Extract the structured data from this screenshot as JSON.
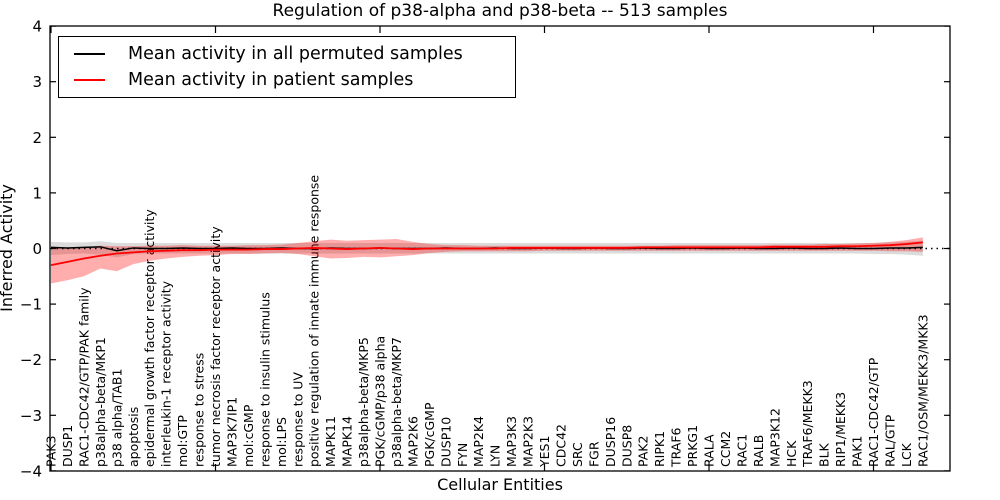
{
  "chart_data": {
    "type": "line",
    "title": "Regulation of p38-alpha and p38-beta -- 513 samples",
    "xlabel": "Cellular Entities",
    "ylabel": "Inferred Activity",
    "ylim": [
      -4,
      4
    ],
    "grid": false,
    "legend_position": "upper left",
    "yticks": [
      {
        "value": 4,
        "label": "4"
      },
      {
        "value": 3,
        "label": "3"
      },
      {
        "value": 2,
        "label": "2"
      },
      {
        "value": 1,
        "label": "1"
      },
      {
        "value": 0,
        "label": "0"
      },
      {
        "value": -1,
        "label": "−1"
      },
      {
        "value": -2,
        "label": "−2"
      },
      {
        "value": -3,
        "label": "−3"
      },
      {
        "value": -4,
        "label": "−4"
      }
    ],
    "xtick_indices": [
      0,
      10,
      20,
      30,
      40,
      50
    ],
    "zero_line": {
      "value": 0,
      "color": "#000000",
      "style": "dotted"
    },
    "categories": [
      "PAK3",
      "DUSP1",
      "RAC1-CDC42/GTP/PAK family",
      "p38alpha-beta/MKP1",
      "p38 alpha/TAB1",
      "apoptosis",
      "epidermal growth factor receptor activity",
      "interleukin-1 receptor activity",
      "mol:GTP",
      "response to stress",
      "tumor necrosis factor receptor activity",
      "MAP3K7IP1",
      "mol:cGMP",
      "response to insulin stimulus",
      "mol:LPS",
      "response to UV",
      "positive regulation of innate immune response",
      "MAPK11",
      "MAPK14",
      "p38alpha-beta/MKP5",
      "PGK/cGMP/p38 alpha",
      "p38alpha-beta/MKP7",
      "MAP2K6",
      "PGK/cGMP",
      "DUSP10",
      "FYN",
      "MAP2K4",
      "LYN",
      "MAP3K3",
      "MAP2K3",
      "YES1",
      "CDC42",
      "SRC",
      "FGR",
      "DUSP16",
      "DUSP8",
      "PAK2",
      "RIPK1",
      "TRAF6",
      "PRKG1",
      "RALA",
      "CCM2",
      "RAC1",
      "RALB",
      "MAP3K12",
      "HCK",
      "TRAF6/MEKK3",
      "BLK",
      "RIP1/MEKK3",
      "PAK1",
      "RAC1-CDC42/GTP",
      "RAL/GTP",
      "LCK",
      "RAC1/OSM/MEKK3/MKK3"
    ],
    "series": [
      {
        "name": "Mean activity in all permuted samples",
        "color": "#000000",
        "line_style": "solid",
        "line_width": 1.5,
        "band_color": "rgba(0,0,0,0.14)",
        "values": [
          0.02,
          0.01,
          0.02,
          0.03,
          -0.04,
          0.01,
          0.0,
          0.0,
          0.01,
          0.0,
          0.0,
          0.01,
          0.0,
          0.0,
          0.01,
          0.0,
          0.0,
          0.01,
          0.0,
          0.0,
          0.01,
          0.0,
          0.0,
          0.0,
          0.01,
          0.0,
          0.0,
          0.01,
          0.0,
          0.0,
          0.01,
          0.0,
          0.0,
          0.01,
          0.0,
          0.0,
          0.01,
          0.0,
          0.0,
          0.01,
          0.0,
          0.0,
          0.01,
          0.0,
          0.0,
          0.01,
          0.0,
          0.0,
          0.01,
          0.0,
          0.0,
          0.01,
          0.01,
          0.02
        ],
        "band_lo": [
          -0.12,
          -0.1,
          -0.09,
          -0.11,
          -0.16,
          -0.1,
          -0.09,
          -0.09,
          -0.09,
          -0.09,
          -0.09,
          -0.09,
          -0.09,
          -0.09,
          -0.09,
          -0.09,
          -0.09,
          -0.09,
          -0.09,
          -0.09,
          -0.09,
          -0.09,
          -0.09,
          -0.09,
          -0.09,
          -0.09,
          -0.09,
          -0.09,
          -0.09,
          -0.09,
          -0.09,
          -0.09,
          -0.09,
          -0.09,
          -0.09,
          -0.09,
          -0.09,
          -0.09,
          -0.09,
          -0.09,
          -0.09,
          -0.09,
          -0.09,
          -0.09,
          -0.09,
          -0.09,
          -0.09,
          -0.09,
          -0.09,
          -0.09,
          -0.1,
          -0.1,
          -0.11,
          -0.13
        ],
        "band_hi": [
          0.12,
          0.11,
          0.11,
          0.13,
          0.1,
          0.1,
          0.1,
          0.1,
          0.1,
          0.1,
          0.1,
          0.1,
          0.1,
          0.1,
          0.1,
          0.1,
          0.1,
          0.1,
          0.1,
          0.1,
          0.1,
          0.1,
          0.1,
          0.1,
          0.1,
          0.1,
          0.1,
          0.1,
          0.1,
          0.1,
          0.1,
          0.1,
          0.1,
          0.1,
          0.1,
          0.1,
          0.1,
          0.1,
          0.1,
          0.1,
          0.1,
          0.1,
          0.1,
          0.1,
          0.1,
          0.1,
          0.1,
          0.1,
          0.1,
          0.1,
          0.1,
          0.11,
          0.12,
          0.14
        ]
      },
      {
        "name": "Mean activity in patient samples",
        "color": "#ff0000",
        "line_style": "solid",
        "line_width": 1.8,
        "band_color": "rgba(255,0,0,0.32)",
        "values": [
          -0.3,
          -0.24,
          -0.18,
          -0.13,
          -0.09,
          -0.07,
          -0.05,
          -0.04,
          -0.03,
          -0.03,
          -0.02,
          -0.02,
          -0.02,
          -0.01,
          -0.01,
          0.0,
          0.01,
          0.0,
          -0.01,
          0.0,
          0.01,
          0.0,
          -0.01,
          0.0,
          0.0,
          0.0,
          0.0,
          0.0,
          0.01,
          0.01,
          0.01,
          0.01,
          0.01,
          0.01,
          0.01,
          0.01,
          0.02,
          0.02,
          0.02,
          0.02,
          0.02,
          0.02,
          0.02,
          0.02,
          0.03,
          0.03,
          0.03,
          0.03,
          0.04,
          0.04,
          0.05,
          0.06,
          0.08,
          0.11
        ],
        "band_lo": [
          -0.63,
          -0.57,
          -0.5,
          -0.36,
          -0.41,
          -0.28,
          -0.22,
          -0.18,
          -0.15,
          -0.13,
          -0.12,
          -0.1,
          -0.1,
          -0.09,
          -0.08,
          -0.1,
          -0.14,
          -0.18,
          -0.17,
          -0.15,
          -0.16,
          -0.14,
          -0.12,
          -0.08,
          -0.06,
          -0.05,
          -0.05,
          -0.05,
          -0.05,
          -0.05,
          -0.04,
          -0.04,
          -0.04,
          -0.04,
          -0.04,
          -0.04,
          -0.04,
          -0.04,
          -0.04,
          -0.04,
          -0.04,
          -0.04,
          -0.04,
          -0.04,
          -0.04,
          -0.04,
          -0.04,
          -0.04,
          -0.04,
          -0.04,
          -0.04,
          -0.05,
          -0.05,
          -0.06
        ],
        "band_hi": [
          0.02,
          0.0,
          0.02,
          0.05,
          0.04,
          0.04,
          0.05,
          0.05,
          0.06,
          0.05,
          0.05,
          0.05,
          0.06,
          0.06,
          0.07,
          0.1,
          0.13,
          0.16,
          0.14,
          0.15,
          0.16,
          0.17,
          0.12,
          0.08,
          0.06,
          0.06,
          0.05,
          0.05,
          0.05,
          0.05,
          0.05,
          0.05,
          0.05,
          0.05,
          0.05,
          0.05,
          0.05,
          0.05,
          0.06,
          0.06,
          0.06,
          0.06,
          0.06,
          0.06,
          0.07,
          0.07,
          0.07,
          0.08,
          0.08,
          0.09,
          0.1,
          0.12,
          0.15,
          0.2
        ]
      }
    ]
  }
}
